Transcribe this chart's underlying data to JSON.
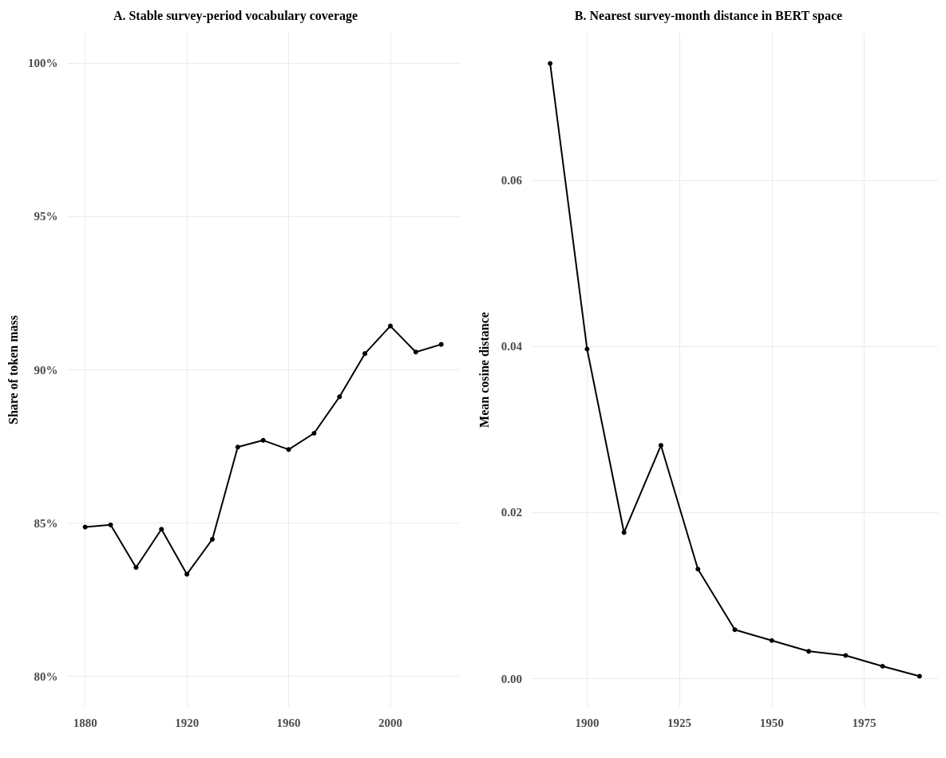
{
  "chart_data": [
    {
      "type": "line",
      "title": "A. Stable survey-period vocabulary coverage",
      "ylabel": "Share of token mass",
      "x": [
        1880,
        1890,
        1900,
        1910,
        1920,
        1930,
        1940,
        1950,
        1960,
        1970,
        1980,
        1990,
        2000,
        2010,
        2020
      ],
      "values": [
        84.87,
        84.94,
        83.55,
        84.8,
        83.33,
        84.47,
        87.48,
        87.7,
        87.4,
        87.93,
        89.12,
        90.53,
        91.43,
        90.58,
        90.83
      ],
      "color": "#000000",
      "marker": "circle",
      "line_style": "solid",
      "grid": true,
      "xlim": [
        1873,
        2027
      ],
      "xticks": [
        1880,
        1920,
        1960,
        2000
      ],
      "ylim": [
        79,
        101
      ],
      "yticks": [
        {
          "value": 80,
          "label": "80%"
        },
        {
          "value": 85,
          "label": "85%"
        },
        {
          "value": 90,
          "label": "90%"
        },
        {
          "value": 95,
          "label": "95%"
        },
        {
          "value": 100,
          "label": "100%"
        }
      ]
    },
    {
      "type": "line",
      "title": "B. Nearest survey-month distance in BERT space",
      "ylabel": "Mean cosine distance",
      "x": [
        1890,
        1900,
        1910,
        1920,
        1930,
        1940,
        1950,
        1960,
        1970,
        1980,
        1990
      ],
      "values": [
        0.0741,
        0.0397,
        0.0176,
        0.0281,
        0.0132,
        0.0059,
        0.0046,
        0.0033,
        0.0028,
        0.0015,
        0.0003
      ],
      "color": "#000000",
      "marker": "circle",
      "line_style": "solid",
      "grid": true,
      "xlim": [
        1885,
        1995
      ],
      "xticks": [
        1900,
        1925,
        1950,
        1975
      ],
      "ylim": [
        -0.0034,
        0.0778
      ],
      "yticks": [
        {
          "value": 0,
          "label": "0.00"
        },
        {
          "value": 0.02,
          "label": "0.02"
        },
        {
          "value": 0.04,
          "label": "0.04"
        },
        {
          "value": 0.06,
          "label": "0.06"
        }
      ]
    }
  ]
}
